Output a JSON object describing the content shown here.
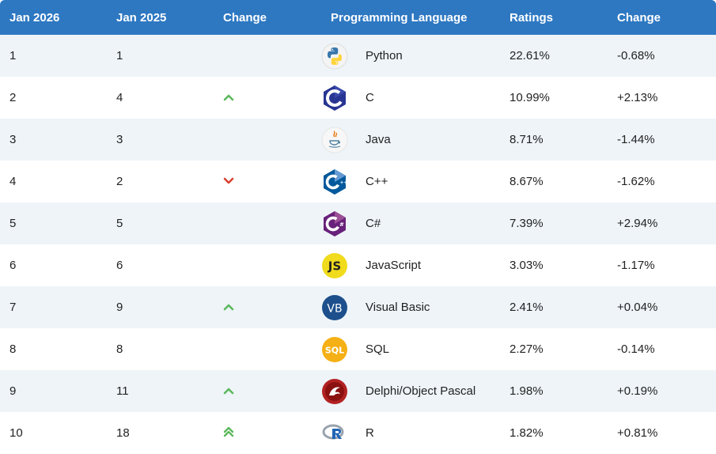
{
  "headers": {
    "col1": "Jan 2026",
    "col2": "Jan 2025",
    "col3": "Change",
    "col4": "Programming Language",
    "col5": "Ratings",
    "col6": "Change"
  },
  "rows": [
    {
      "rank_now": "1",
      "rank_prev": "1",
      "trend": "none",
      "language": "Python",
      "logo": "python-logo-icon",
      "rating": "22.61%",
      "change": "-0.68%"
    },
    {
      "rank_now": "2",
      "rank_prev": "4",
      "trend": "up",
      "language": "C",
      "logo": "c-logo-icon",
      "rating": "10.99%",
      "change": "+2.13%"
    },
    {
      "rank_now": "3",
      "rank_prev": "3",
      "trend": "none",
      "language": "Java",
      "logo": "java-logo-icon",
      "rating": "8.71%",
      "change": "-1.44%"
    },
    {
      "rank_now": "4",
      "rank_prev": "2",
      "trend": "down",
      "language": "C++",
      "logo": "cpp-logo-icon",
      "rating": "8.67%",
      "change": "-1.62%"
    },
    {
      "rank_now": "5",
      "rank_prev": "5",
      "trend": "none",
      "language": "C#",
      "logo": "csharp-logo-icon",
      "rating": "7.39%",
      "change": "+2.94%"
    },
    {
      "rank_now": "6",
      "rank_prev": "6",
      "trend": "none",
      "language": "JavaScript",
      "logo": "javascript-logo-icon",
      "rating": "3.03%",
      "change": "-1.17%"
    },
    {
      "rank_now": "7",
      "rank_prev": "9",
      "trend": "up",
      "language": "Visual Basic",
      "logo": "visual-basic-logo-icon",
      "rating": "2.41%",
      "change": "+0.04%"
    },
    {
      "rank_now": "8",
      "rank_prev": "8",
      "trend": "none",
      "language": "SQL",
      "logo": "sql-logo-icon",
      "rating": "2.27%",
      "change": "-0.14%"
    },
    {
      "rank_now": "9",
      "rank_prev": "11",
      "trend": "up",
      "language": "Delphi/Object Pascal",
      "logo": "delphi-logo-icon",
      "rating": "1.98%",
      "change": "+0.19%"
    },
    {
      "rank_now": "10",
      "rank_prev": "18",
      "trend": "double-up",
      "language": "R",
      "logo": "r-logo-icon",
      "rating": "1.82%",
      "change": "+0.81%"
    }
  ],
  "colors": {
    "header_bg": "#2e78c2",
    "up_arrow": "#5cb85c",
    "down_arrow": "#d9432f"
  }
}
